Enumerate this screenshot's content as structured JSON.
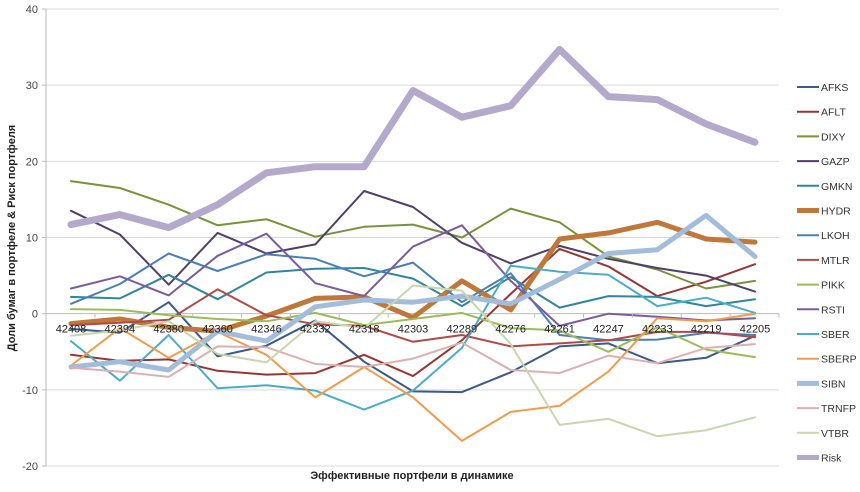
{
  "chart_data": {
    "type": "line",
    "title": "",
    "xlabel": "Эффективные портфели в динамике",
    "ylabel": "Доли бумаг в портфеле & Риск портфеля",
    "ylim": [
      -20,
      40
    ],
    "yticks": [
      -20,
      -10,
      0,
      10,
      20,
      30,
      40
    ],
    "grid": true,
    "legend": "right",
    "categories": [
      "42408",
      "42394",
      "42380",
      "42360",
      "42346",
      "42332",
      "42318",
      "42303",
      "42289",
      "42276",
      "42261",
      "42247",
      "42233",
      "42219",
      "42205"
    ],
    "series": [
      {
        "name": "AFKS",
        "color": "#3b5a8a",
        "width": 2,
        "values": [
          -2.0,
          -2.5,
          1.5,
          -5.6,
          -4.2,
          -0.9,
          -6.3,
          -10.2,
          -10.3,
          -7.7,
          -4.3,
          -3.9,
          -6.5,
          -5.8,
          -2.9
        ]
      },
      {
        "name": "AFLT",
        "color": "#953735",
        "width": 2,
        "values": [
          -5.4,
          -6.2,
          -6.0,
          -7.5,
          -8.0,
          -7.8,
          -5.4,
          -8.2,
          -3.5,
          2.6,
          8.5,
          6.2,
          2.3,
          4.2,
          6.5
        ]
      },
      {
        "name": "DIXY",
        "color": "#77933c",
        "width": 2,
        "values": [
          17.4,
          16.5,
          14.3,
          11.6,
          12.4,
          10.1,
          11.4,
          11.7,
          10.0,
          13.8,
          12.0,
          7.5,
          5.8,
          3.3,
          4.3
        ]
      },
      {
        "name": "GAZP",
        "color": "#4f3f6a",
        "width": 2,
        "values": [
          13.5,
          10.4,
          3.8,
          10.6,
          7.9,
          9.1,
          16.1,
          14.0,
          9.3,
          6.6,
          8.9,
          7.2,
          6.0,
          5.0,
          2.9
        ]
      },
      {
        "name": "GMKN",
        "color": "#31859c",
        "width": 2,
        "values": [
          2.2,
          2.0,
          5.1,
          1.9,
          5.4,
          5.9,
          6.0,
          4.6,
          1.0,
          4.8,
          0.8,
          2.3,
          2.2,
          1.0,
          1.9
        ]
      },
      {
        "name": "HYDR",
        "color": "#c0783a",
        "width": 5,
        "values": [
          -1.3,
          -0.7,
          -1.8,
          -2.3,
          -0.3,
          2.0,
          2.2,
          -0.5,
          4.3,
          0.5,
          9.8,
          10.6,
          12.0,
          9.8,
          9.4
        ]
      },
      {
        "name": "LKOH",
        "color": "#4a7fb5",
        "width": 2,
        "values": [
          1.3,
          3.9,
          7.9,
          5.6,
          7.8,
          7.2,
          4.9,
          6.7,
          1.5,
          5.3,
          -2.8,
          -3.5,
          -3.4,
          -2.5,
          -2.8
        ]
      },
      {
        "name": "MTLR",
        "color": "#b04a46",
        "width": 2,
        "values": [
          -1.5,
          -1.2,
          -0.8,
          3.2,
          -0.2,
          -1.4,
          -1.6,
          -3.7,
          -2.8,
          -4.3,
          -3.9,
          -3.5,
          -2.4,
          -2.4,
          -3.1
        ]
      },
      {
        "name": "PIKK",
        "color": "#9bbb59",
        "width": 2,
        "values": [
          0.6,
          0.5,
          -0.2,
          -0.7,
          -1.0,
          0.1,
          -1.5,
          -0.7,
          0.1,
          -1.9,
          -2.2,
          -5.0,
          -1.8,
          -4.7,
          -5.7
        ]
      },
      {
        "name": "RSTI",
        "color": "#7a5c9e",
        "width": 2,
        "values": [
          3.3,
          4.9,
          2.4,
          7.6,
          10.5,
          4.0,
          2.3,
          8.8,
          11.6,
          4.3,
          -1.6,
          0.0,
          -0.4,
          -0.9,
          -0.6
        ]
      },
      {
        "name": "SBER",
        "color": "#4bacc6",
        "width": 2,
        "values": [
          -3.6,
          -8.8,
          -2.8,
          -9.8,
          -9.4,
          -10.1,
          -12.6,
          -10.1,
          -4.5,
          6.3,
          5.5,
          5.1,
          1.0,
          2.1,
          0.1
        ]
      },
      {
        "name": "SBERP",
        "color": "#f19c4b",
        "width": 2,
        "values": [
          -6.8,
          -1.9,
          -5.8,
          -2.4,
          -5.4,
          -11.0,
          -7.0,
          -11.0,
          -16.7,
          -12.9,
          -12.1,
          -7.6,
          -0.6,
          -1.0,
          0.0
        ]
      },
      {
        "name": "SIBN",
        "color": "#a2bcd9",
        "width": 5,
        "values": [
          -7.0,
          -6.3,
          -7.4,
          -2.3,
          -3.6,
          0.9,
          1.8,
          1.5,
          2.3,
          1.3,
          4.5,
          7.9,
          8.4,
          12.9,
          7.5
        ]
      },
      {
        "name": "TRNFP",
        "color": "#dcb0b0",
        "width": 2,
        "values": [
          -7.1,
          -7.6,
          -8.3,
          -4.3,
          -4.4,
          -6.6,
          -7.0,
          -5.9,
          -3.8,
          -7.4,
          -7.8,
          -5.5,
          -6.5,
          -4.5,
          -4.0
        ]
      },
      {
        "name": "VTBR",
        "color": "#c8d6ae",
        "width": 2,
        "values": [
          -2.9,
          -2.2,
          -1.0,
          -5.3,
          -6.4,
          -1.0,
          -1.9,
          3.7,
          3.0,
          -4.0,
          -14.6,
          -13.8,
          -16.1,
          -15.3,
          -13.6
        ]
      },
      {
        "name": "Risk",
        "color": "#b3aacb",
        "width": 7,
        "values": [
          11.7,
          13.0,
          11.3,
          14.3,
          18.5,
          19.3,
          19.3,
          29.3,
          25.8,
          27.3,
          34.7,
          28.5,
          28.1,
          24.9,
          22.5
        ]
      }
    ]
  }
}
